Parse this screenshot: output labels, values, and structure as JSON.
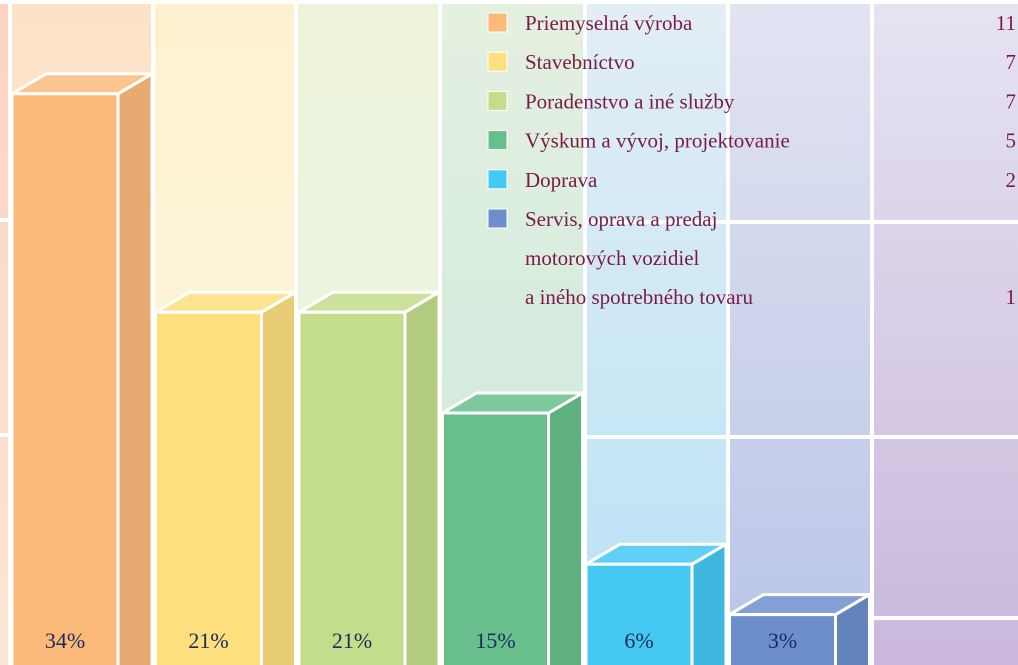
{
  "chart_data": {
    "type": "bar",
    "categories": [
      "Priemyselná výroba",
      "Stavebníctvo",
      "Poradenstvo a iné služby",
      "Výskum a vývoj, projektovanie",
      "Doprava",
      "Servis, oprava a predaj\nmotorových vozidiel\na iného spotrebného tovaru"
    ],
    "values": [
      34,
      21,
      21,
      15,
      6,
      3
    ],
    "value_labels": [
      "34%",
      "21%",
      "21%",
      "15%",
      "6%",
      "3%"
    ],
    "counts": [
      11,
      7,
      7,
      5,
      2,
      1
    ],
    "colors": [
      "#fbb97a",
      "#fddf7e",
      "#c3dd8a",
      "#67c08b",
      "#45c8f2",
      "#6c8fcb"
    ],
    "legend": "top-right"
  }
}
